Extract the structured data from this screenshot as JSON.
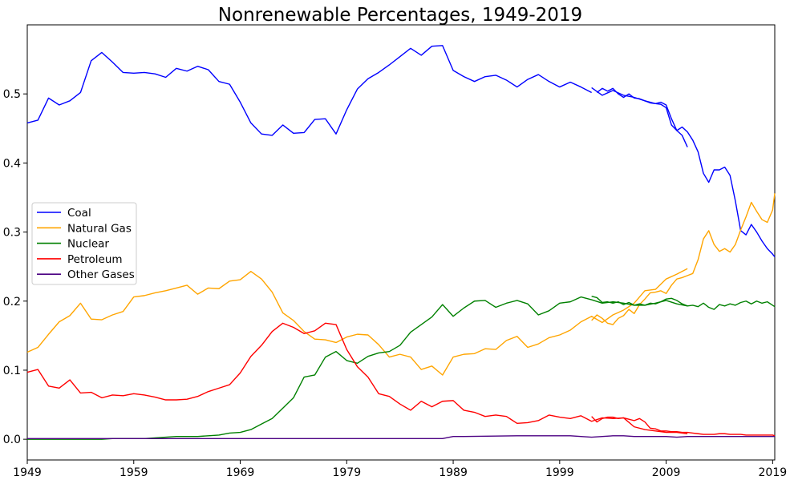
{
  "chart_data": {
    "type": "line",
    "title": "Nonrenewable Percentages, 1949-2019",
    "xlabel": "",
    "ylabel": "",
    "xlim": [
      1949,
      2019.2
    ],
    "ylim": [
      -0.03,
      0.6
    ],
    "x_ticks": [
      1949,
      1959,
      1969,
      1979,
      1989,
      1999,
      2009,
      2019
    ],
    "y_ticks": [
      0.0,
      0.1,
      0.2,
      0.3,
      0.4,
      0.5
    ],
    "y_tick_labels": [
      "0.0",
      "0.1",
      "0.2",
      "0.3",
      "0.4",
      "0.5"
    ],
    "x_tick_labels": [
      "1949",
      "1959",
      "1969",
      "1979",
      "1989",
      "1999",
      "2009",
      "2019"
    ],
    "grid": false,
    "legend_position": "center-left",
    "series": [
      {
        "name": "Coal",
        "color": "#0000ff",
        "segments": [
          {
            "x": [
              1949,
              1950,
              1951,
              1952,
              1953,
              1954,
              1955,
              1956,
              1957,
              1958,
              1959,
              1960,
              1961,
              1962,
              1963,
              1964,
              1965,
              1966,
              1967,
              1968,
              1969,
              1970,
              1971,
              1972,
              1973,
              1974,
              1975,
              1976,
              1977,
              1978,
              1979,
              1980,
              1981,
              1982,
              1983,
              1984,
              1985,
              1986,
              1987,
              1988,
              1989,
              1990,
              1991,
              1992,
              1993,
              1994,
              1995,
              1996,
              1997,
              1998,
              1999,
              2000,
              2001,
              2002
            ],
            "y": [
              0.458,
              0.462,
              0.494,
              0.484,
              0.49,
              0.502,
              0.548,
              0.56,
              0.546,
              0.531,
              0.53,
              0.531,
              0.529,
              0.524,
              0.537,
              0.533,
              0.54,
              0.535,
              0.518,
              0.514,
              0.488,
              0.458,
              0.442,
              0.44,
              0.455,
              0.443,
              0.444,
              0.463,
              0.464,
              0.442,
              0.477,
              0.507,
              0.522,
              0.531,
              0.542,
              0.554,
              0.566,
              0.556,
              0.569,
              0.57,
              0.534,
              0.525,
              0.518,
              0.525,
              0.527,
              0.52,
              0.51,
              0.521,
              0.528,
              0.518,
              0.51,
              0.517,
              0.51,
              0.502
            ]
          },
          {
            "x": [
              2002,
              2003,
              2004,
              2005,
              2006,
              2007,
              2008,
              2008.5,
              2009,
              2009.5,
              2010,
              2010.5,
              2011
            ],
            "y": [
              0.509,
              0.498,
              0.505,
              0.498,
              0.495,
              0.49,
              0.486,
              0.485,
              0.48,
              0.455,
              0.447,
              0.44,
              0.423
            ]
          },
          {
            "x": [
              2002.5,
              2003,
              2003.5,
              2004,
              2004.5,
              2005,
              2005.5,
              2006,
              2006.5,
              2007,
              2007.5,
              2008,
              2008.5,
              2009,
              2009.5,
              2010,
              2010.5,
              2011,
              2011.5,
              2012,
              2012.5,
              2013,
              2013.5,
              2014,
              2014.5,
              2015,
              2015.5,
              2016,
              2016.5,
              2017,
              2017.5,
              2018,
              2018.5,
              2019,
              2019.2
            ],
            "y": [
              0.502,
              0.508,
              0.504,
              0.508,
              0.5,
              0.495,
              0.5,
              0.494,
              0.493,
              0.49,
              0.487,
              0.486,
              0.488,
              0.484,
              0.464,
              0.447,
              0.452,
              0.445,
              0.433,
              0.416,
              0.385,
              0.372,
              0.39,
              0.39,
              0.394,
              0.382,
              0.345,
              0.302,
              0.296,
              0.311,
              0.3,
              0.287,
              0.276,
              0.268,
              0.264
            ]
          }
        ]
      },
      {
        "name": "Natural Gas",
        "color": "#ffa500",
        "segments": [
          {
            "x": [
              1949,
              1950,
              1951,
              1952,
              1953,
              1954,
              1955,
              1956,
              1957,
              1958,
              1959,
              1960,
              1961,
              1962,
              1963,
              1964,
              1965,
              1966,
              1967,
              1968,
              1969,
              1970,
              1971,
              1972,
              1973,
              1974,
              1975,
              1976,
              1977,
              1978,
              1979,
              1980,
              1981,
              1982,
              1983,
              1984,
              1985,
              1986,
              1987,
              1988,
              1989,
              1990,
              1991,
              1992,
              1993,
              1994,
              1995,
              1996,
              1997,
              1998,
              1999,
              2000,
              2001,
              2002,
              2003,
              2004,
              2005,
              2006,
              2007,
              2008,
              2009,
              2010,
              2011
            ],
            "y": [
              0.126,
              0.133,
              0.152,
              0.17,
              0.179,
              0.197,
              0.174,
              0.173,
              0.18,
              0.185,
              0.206,
              0.208,
              0.212,
              0.215,
              0.219,
              0.223,
              0.21,
              0.219,
              0.218,
              0.229,
              0.231,
              0.243,
              0.232,
              0.213,
              0.183,
              0.172,
              0.156,
              0.145,
              0.144,
              0.14,
              0.148,
              0.152,
              0.151,
              0.137,
              0.119,
              0.123,
              0.119,
              0.101,
              0.106,
              0.093,
              0.119,
              0.123,
              0.124,
              0.131,
              0.13,
              0.143,
              0.149,
              0.133,
              0.138,
              0.147,
              0.151,
              0.158,
              0.17,
              0.178,
              0.169,
              0.18,
              0.187,
              0.197,
              0.215,
              0.217,
              0.232,
              0.239,
              0.247
            ]
          },
          {
            "x": [
              2002,
              2002.5,
              2003,
              2003.5,
              2004,
              2004.5,
              2005,
              2005.5,
              2006,
              2006.5,
              2007,
              2007.5,
              2008,
              2008.5,
              2009,
              2009.5,
              2010,
              2010.5,
              2011,
              2011.5,
              2012,
              2012.5,
              2013,
              2013.5,
              2014,
              2014.5,
              2015,
              2015.5,
              2016,
              2016.5,
              2017,
              2017.5,
              2018,
              2018.5,
              2019,
              2019.2
            ],
            "y": [
              0.172,
              0.18,
              0.175,
              0.168,
              0.166,
              0.175,
              0.179,
              0.188,
              0.182,
              0.195,
              0.203,
              0.212,
              0.213,
              0.215,
              0.211,
              0.223,
              0.232,
              0.234,
              0.237,
              0.24,
              0.26,
              0.29,
              0.302,
              0.282,
              0.272,
              0.276,
              0.271,
              0.282,
              0.303,
              0.322,
              0.343,
              0.33,
              0.318,
              0.314,
              0.332,
              0.356
            ]
          }
        ]
      },
      {
        "name": "Nuclear",
        "color": "#008000",
        "segments": [
          {
            "x": [
              1949,
              1950,
              1951,
              1952,
              1953,
              1954,
              1955,
              1956,
              1957,
              1958,
              1959,
              1960,
              1961,
              1962,
              1963,
              1964,
              1965,
              1966,
              1967,
              1968,
              1969,
              1970,
              1971,
              1972,
              1973,
              1974,
              1975,
              1976,
              1977,
              1978,
              1979,
              1980,
              1981,
              1982,
              1983,
              1984,
              1985,
              1986,
              1987,
              1988,
              1989,
              1990,
              1991,
              1992,
              1993,
              1994,
              1995,
              1996,
              1997,
              1998,
              1999,
              2000,
              2001,
              2002,
              2003,
              2004,
              2005,
              2006,
              2007,
              2008,
              2009,
              2010,
              2011
            ],
            "y": [
              0,
              0,
              0,
              0,
              0,
              0,
              0,
              0,
              0.001,
              0.001,
              0.001,
              0.001,
              0.002,
              0.003,
              0.004,
              0.004,
              0.004,
              0.005,
              0.006,
              0.009,
              0.01,
              0.014,
              0.022,
              0.03,
              0.045,
              0.06,
              0.09,
              0.093,
              0.119,
              0.127,
              0.114,
              0.11,
              0.12,
              0.125,
              0.127,
              0.136,
              0.155,
              0.166,
              0.177,
              0.195,
              0.178,
              0.19,
              0.2,
              0.201,
              0.191,
              0.197,
              0.201,
              0.196,
              0.18,
              0.186,
              0.197,
              0.199,
              0.206,
              0.202,
              0.197,
              0.199,
              0.197,
              0.194,
              0.194,
              0.197,
              0.201,
              0.196,
              0.193
            ]
          },
          {
            "x": [
              2002,
              2002.5,
              2003,
              2003.5,
              2004,
              2004.5,
              2005,
              2005.5,
              2006,
              2006.5,
              2007,
              2007.5,
              2008,
              2008.5,
              2009,
              2009.5,
              2010,
              2010.5,
              2011,
              2011.5,
              2012,
              2012.5,
              2013,
              2013.5,
              2014,
              2014.5,
              2015,
              2015.5,
              2016,
              2016.5,
              2017,
              2017.5,
              2018,
              2018.5,
              2019,
              2019.2
            ],
            "y": [
              0.207,
              0.205,
              0.198,
              0.199,
              0.197,
              0.199,
              0.195,
              0.198,
              0.194,
              0.196,
              0.194,
              0.197,
              0.196,
              0.199,
              0.203,
              0.204,
              0.201,
              0.196,
              0.193,
              0.194,
              0.192,
              0.197,
              0.191,
              0.188,
              0.195,
              0.193,
              0.196,
              0.194,
              0.198,
              0.2,
              0.196,
              0.2,
              0.197,
              0.199,
              0.194,
              0.192
            ]
          }
        ]
      },
      {
        "name": "Petroleum",
        "color": "#ff0000",
        "segments": [
          {
            "x": [
              1949,
              1950,
              1951,
              1952,
              1953,
              1954,
              1955,
              1956,
              1957,
              1958,
              1959,
              1960,
              1961,
              1962,
              1963,
              1964,
              1965,
              1966,
              1967,
              1968,
              1969,
              1970,
              1971,
              1972,
              1973,
              1974,
              1975,
              1976,
              1977,
              1978,
              1979,
              1980,
              1981,
              1982,
              1983,
              1984,
              1985,
              1986,
              1987,
              1988,
              1989,
              1990,
              1991,
              1992,
              1993,
              1994,
              1995,
              1996,
              1997,
              1998,
              1999,
              2000,
              2001,
              2002,
              2003,
              2004,
              2005,
              2006,
              2007,
              2008,
              2009,
              2010,
              2011
            ],
            "y": [
              0.097,
              0.101,
              0.077,
              0.074,
              0.086,
              0.067,
              0.068,
              0.06,
              0.064,
              0.063,
              0.066,
              0.064,
              0.061,
              0.057,
              0.057,
              0.058,
              0.062,
              0.069,
              0.074,
              0.079,
              0.096,
              0.12,
              0.136,
              0.156,
              0.168,
              0.162,
              0.153,
              0.157,
              0.168,
              0.166,
              0.13,
              0.105,
              0.09,
              0.066,
              0.062,
              0.051,
              0.042,
              0.055,
              0.047,
              0.055,
              0.056,
              0.042,
              0.039,
              0.033,
              0.035,
              0.033,
              0.023,
              0.024,
              0.027,
              0.035,
              0.032,
              0.03,
              0.034,
              0.026,
              0.031,
              0.03,
              0.031,
              0.018,
              0.014,
              0.012,
              0.01,
              0.01,
              0.008
            ]
          },
          {
            "x": [
              2002,
              2002.5,
              2003,
              2003.5,
              2004,
              2004.5,
              2005,
              2005.5,
              2006,
              2006.5,
              2007,
              2007.5,
              2008,
              2008.5,
              2009,
              2009.5,
              2010,
              2010.5,
              2011,
              2011.5,
              2012,
              2012.5,
              2013,
              2013.5,
              2014,
              2014.5,
              2015,
              2015.5,
              2016,
              2016.5,
              2017,
              2017.5,
              2018,
              2018.5,
              2019,
              2019.2
            ],
            "y": [
              0.033,
              0.025,
              0.03,
              0.032,
              0.032,
              0.03,
              0.031,
              0.029,
              0.027,
              0.03,
              0.025,
              0.016,
              0.015,
              0.012,
              0.012,
              0.011,
              0.011,
              0.01,
              0.01,
              0.009,
              0.008,
              0.007,
              0.007,
              0.007,
              0.008,
              0.008,
              0.007,
              0.007,
              0.007,
              0.006,
              0.006,
              0.006,
              0.006,
              0.006,
              0.006,
              0.005
            ]
          }
        ]
      },
      {
        "name": "Other Gases",
        "color": "#4b0082",
        "segments": [
          {
            "x": [
              1949,
              1960,
              1970,
              1980,
              1988,
              1989,
              1990,
              1995,
              2000,
              2001,
              2002,
              2003,
              2004,
              2005,
              2006,
              2007,
              2008,
              2009,
              2010,
              2011,
              2012,
              2013,
              2014,
              2015,
              2016,
              2017,
              2018,
              2019,
              2019.2
            ],
            "y": [
              0.001,
              0.001,
              0.001,
              0.001,
              0.001,
              0.004,
              0.004,
              0.005,
              0.005,
              0.004,
              0.003,
              0.004,
              0.005,
              0.005,
              0.004,
              0.004,
              0.004,
              0.004,
              0.003,
              0.004,
              0.004,
              0.004,
              0.004,
              0.004,
              0.004,
              0.004,
              0.004,
              0.004,
              0.004
            ]
          }
        ]
      }
    ]
  }
}
